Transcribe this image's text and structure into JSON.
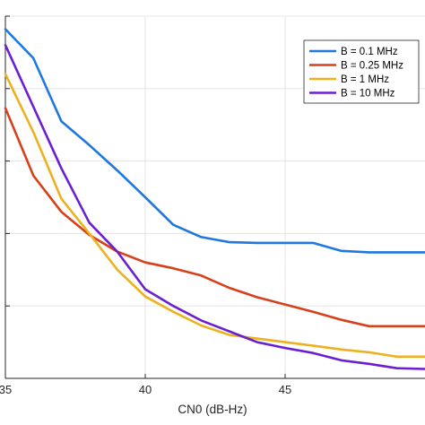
{
  "chart_data": {
    "type": "line",
    "title": "",
    "xlabel": "CN0 (dB-Hz)",
    "ylabel": "",
    "xlim": [
      35,
      50
    ],
    "ylim": [
      0,
      5
    ],
    "x_ticks": [
      35,
      40,
      45
    ],
    "x_tick_labels": [
      "35",
      "40",
      "45"
    ],
    "y_ticks": [
      0,
      1,
      2,
      3,
      4,
      5
    ],
    "grid": true,
    "legend_position": "top-right",
    "series": [
      {
        "name": "B = 0.1 MHz",
        "color": "#1f77e0",
        "x": [
          35,
          36,
          37,
          38,
          39,
          40,
          41,
          42,
          43,
          44,
          45,
          46,
          47,
          48,
          49,
          50
        ],
        "y": [
          4.82,
          4.42,
          3.55,
          3.22,
          2.87,
          2.5,
          2.12,
          1.95,
          1.88,
          1.87,
          1.87,
          1.87,
          1.76,
          1.74,
          1.74,
          1.74
        ]
      },
      {
        "name": "B = 0.25 MHz",
        "color": "#d6401a",
        "x": [
          35,
          36,
          37,
          38,
          39,
          40,
          41,
          42,
          43,
          44,
          45,
          46,
          47,
          48,
          49,
          50
        ],
        "y": [
          3.73,
          2.8,
          2.3,
          1.98,
          1.75,
          1.6,
          1.52,
          1.42,
          1.25,
          1.12,
          1.02,
          0.92,
          0.81,
          0.72,
          0.72,
          0.72
        ]
      },
      {
        "name": "B = 1 MHz",
        "color": "#edb120",
        "x": [
          35,
          36,
          37,
          38,
          39,
          40,
          41,
          42,
          43,
          44,
          45,
          46,
          47,
          48,
          49,
          50
        ],
        "y": [
          4.2,
          3.4,
          2.48,
          2.0,
          1.5,
          1.13,
          0.92,
          0.73,
          0.6,
          0.55,
          0.5,
          0.45,
          0.4,
          0.36,
          0.3,
          0.3
        ]
      },
      {
        "name": "B = 10 MHz",
        "color": "#6a1fd0",
        "x": [
          35,
          36,
          37,
          38,
          39,
          40,
          41,
          42,
          43,
          44,
          45,
          46,
          47,
          48,
          49,
          50
        ],
        "y": [
          4.6,
          3.75,
          2.9,
          2.15,
          1.75,
          1.23,
          1.0,
          0.8,
          0.65,
          0.5,
          0.42,
          0.35,
          0.25,
          0.2,
          0.14,
          0.13
        ]
      }
    ]
  }
}
